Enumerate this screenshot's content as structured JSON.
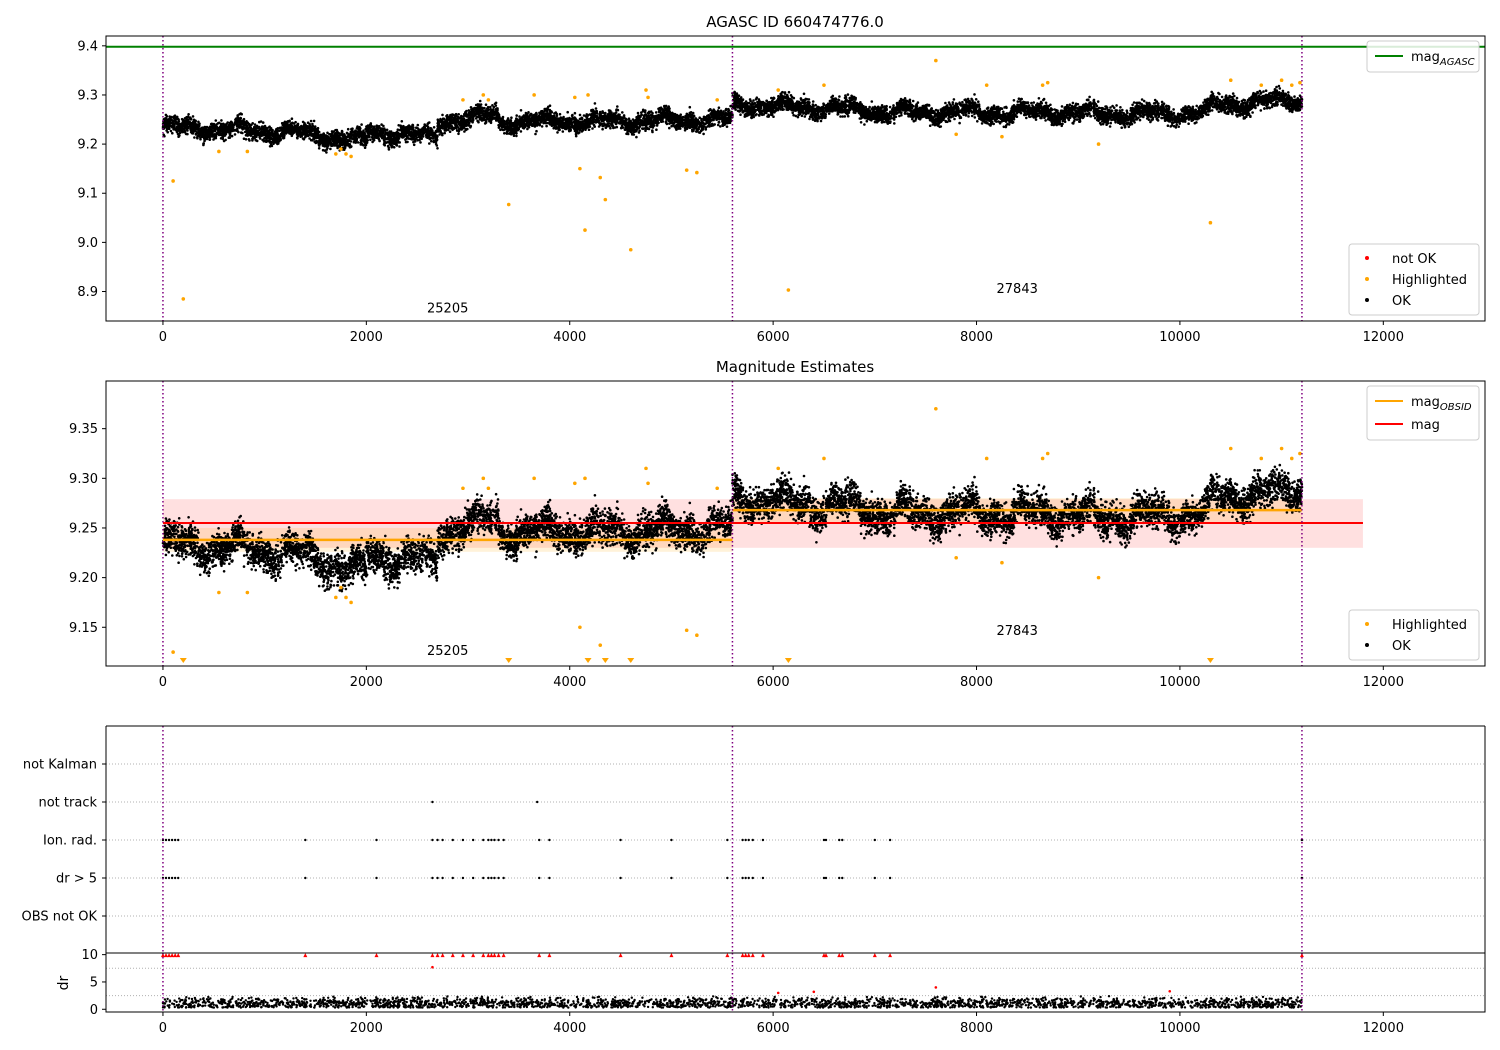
{
  "chart_data": [
    {
      "type": "scatter",
      "title": "AGASC ID 660474776.0",
      "xlim": [
        -560,
        13000
      ],
      "ylim": [
        8.84,
        9.42
      ],
      "xticks": [
        0,
        2000,
        4000,
        6000,
        8000,
        10000,
        12000
      ],
      "yticks": [
        8.9,
        9.0,
        9.1,
        9.2,
        9.3,
        9.4
      ],
      "ytick_labels": [
        "8.9",
        "9.0",
        "9.1",
        "9.2",
        "9.3",
        "9.4"
      ],
      "vlines": [
        0,
        5600,
        11200
      ],
      "vline_color": "#800080",
      "hlines": [
        {
          "y": 9.398,
          "x0": -560,
          "x1": 13000,
          "color": "#008000"
        }
      ],
      "obsid_labels": [
        {
          "text": "25205",
          "x": 2800,
          "y": 8.857
        },
        {
          "text": "27843",
          "x": 8400,
          "y": 8.897
        }
      ],
      "legend_lines": {
        "position": "top-right",
        "entries": [
          {
            "name": "mag",
            "sub": "AGASC",
            "color": "#008000"
          }
        ]
      },
      "legend_points": {
        "position": "bottom-right",
        "entries": [
          {
            "name": "not OK",
            "color": "#ff0000"
          },
          {
            "name": "Highlighted",
            "color": "#ffa500"
          },
          {
            "name": "OK",
            "color": "#000000"
          }
        ]
      },
      "ok_points": {
        "color": "#000000",
        "segments": [
          {
            "x": [
              0,
              1300
            ],
            "y": [
              9.235,
              9.225
            ]
          },
          {
            "x": [
              1300,
              2000
            ],
            "y": [
              9.225,
              9.205
            ]
          },
          {
            "x": [
              2000,
              2700
            ],
            "y": [
              9.225,
              9.215
            ]
          },
          {
            "x": [
              2700,
              3300
            ],
            "y": [
              9.245,
              9.26
            ]
          },
          {
            "x": [
              3300,
              5600
            ],
            "y": [
              9.245,
              9.25
            ]
          },
          {
            "x": [
              5600,
              7000
            ],
            "y": [
              9.28,
              9.27
            ]
          },
          {
            "x": [
              7000,
              9000
            ],
            "y": [
              9.265,
              9.265
            ]
          },
          {
            "x": [
              9000,
              10300
            ],
            "y": [
              9.26,
              9.265
            ]
          },
          {
            "x": [
              10300,
              11200
            ],
            "y": [
              9.28,
              9.29
            ]
          }
        ]
      },
      "highlighted_points": {
        "color": "#ffa500",
        "x": [
          100,
          200,
          550,
          830,
          1700,
          1750,
          1800,
          1850,
          2950,
          3150,
          3200,
          3400,
          3650,
          4050,
          4100,
          4150,
          4180,
          4300,
          4350,
          4600,
          4750,
          4770,
          5150,
          5250,
          5450,
          6050,
          6150,
          6500,
          7600,
          7800,
          8100,
          8250,
          8650,
          8700,
          9200,
          10300,
          10500,
          10800,
          11000,
          11100,
          11180
        ],
        "y": [
          9.125,
          8.885,
          9.185,
          9.185,
          9.18,
          9.19,
          9.18,
          9.175,
          9.29,
          9.3,
          9.29,
          9.077,
          9.3,
          9.295,
          9.15,
          9.025,
          9.3,
          9.132,
          9.087,
          8.985,
          9.31,
          9.295,
          9.147,
          9.142,
          9.29,
          9.31,
          8.903,
          9.32,
          9.37,
          9.22,
          9.32,
          9.215,
          9.32,
          9.325,
          9.2,
          9.04,
          9.33,
          9.32,
          9.33,
          9.32,
          9.325
        ]
      },
      "not_ok_points": {
        "color": "#ff0000",
        "x": [],
        "y": []
      }
    },
    {
      "type": "scatter",
      "title": "Magnitude Estimates",
      "xlim": [
        -560,
        13000
      ],
      "ylim": [
        9.111,
        9.398
      ],
      "xticks": [
        0,
        2000,
        4000,
        6000,
        8000,
        10000,
        12000
      ],
      "yticks": [
        9.15,
        9.2,
        9.25,
        9.3,
        9.35
      ],
      "ytick_labels": [
        "9.15",
        "9.20",
        "9.25",
        "9.30",
        "9.35"
      ],
      "vlines": [
        0,
        5600,
        11200
      ],
      "vline_color": "#800080",
      "mag": {
        "value": 9.255,
        "x0": 0,
        "x1": 11800,
        "band": [
          9.23,
          9.279
        ],
        "color": "#ff0000"
      },
      "mag_obsid": [
        {
          "value": 9.238,
          "x0": 0,
          "x1": 5600,
          "band": [
            9.226,
            9.25
          ]
        },
        {
          "value": 9.268,
          "x0": 5600,
          "x1": 11200,
          "band": [
            9.256,
            9.28
          ]
        }
      ],
      "obsid_labels": [
        {
          "text": "25205",
          "x": 2800,
          "y": 9.122
        },
        {
          "text": "27843",
          "x": 8400,
          "y": 9.142
        }
      ],
      "legend_lines": {
        "position": "top-right",
        "entries": [
          {
            "name": "mag",
            "sub": "OBSID",
            "color": "#ffa500"
          },
          {
            "name": "mag",
            "sub": "",
            "color": "#ff0000"
          }
        ]
      },
      "legend_points": {
        "position": "bottom-right",
        "entries": [
          {
            "name": "Highlighted",
            "color": "#ffa500"
          },
          {
            "name": "OK",
            "color": "#000000"
          }
        ]
      },
      "ok_points": {
        "color": "#000000",
        "segments": [
          {
            "x": [
              0,
              1300
            ],
            "y": [
              9.235,
              9.225
            ]
          },
          {
            "x": [
              1300,
              2000
            ],
            "y": [
              9.225,
              9.205
            ]
          },
          {
            "x": [
              2000,
              2700
            ],
            "y": [
              9.225,
              9.215
            ]
          },
          {
            "x": [
              2700,
              3300
            ],
            "y": [
              9.245,
              9.26
            ]
          },
          {
            "x": [
              3300,
              5600
            ],
            "y": [
              9.245,
              9.25
            ]
          },
          {
            "x": [
              5600,
              7000
            ],
            "y": [
              9.28,
              9.27
            ]
          },
          {
            "x": [
              7000,
              9000
            ],
            "y": [
              9.265,
              9.265
            ]
          },
          {
            "x": [
              9000,
              10300
            ],
            "y": [
              9.26,
              9.265
            ]
          },
          {
            "x": [
              10300,
              11200
            ],
            "y": [
              9.28,
              9.29
            ]
          }
        ]
      },
      "highlighted_points": {
        "color": "#ffa500",
        "x": [
          100,
          550,
          830,
          1700,
          1750,
          1800,
          1850,
          2950,
          3150,
          3200,
          3650,
          4050,
          4100,
          4150,
          4300,
          4750,
          4770,
          5150,
          5250,
          5450,
          6050,
          6500,
          7600,
          7800,
          8100,
          8250,
          8650,
          8700,
          9200,
          10500,
          10800,
          11000,
          11100,
          11180
        ],
        "y": [
          9.125,
          9.185,
          9.185,
          9.18,
          9.19,
          9.18,
          9.175,
          9.29,
          9.3,
          9.29,
          9.3,
          9.295,
          9.15,
          9.3,
          9.132,
          9.31,
          9.295,
          9.147,
          9.142,
          9.29,
          9.31,
          9.32,
          9.37,
          9.22,
          9.32,
          9.215,
          9.32,
          9.325,
          9.2,
          9.33,
          9.32,
          9.33,
          9.32,
          9.325
        ]
      },
      "off_scale_markers": {
        "color": "#ffa500",
        "x": [
          200,
          3400,
          4180,
          4350,
          4600,
          6150,
          10300
        ]
      }
    },
    {
      "type": "scatter",
      "xlim": [
        -560,
        13000
      ],
      "categories": [
        "not Kalman",
        "not track",
        "Ion. rad.",
        "dr > 5",
        "OBS not OK"
      ],
      "vlines": [
        0,
        5600,
        11200
      ],
      "vline_color": "#800080",
      "flag_points": {
        "not track": [
          2650,
          3680
        ],
        "Ion. rad.": [
          0,
          30,
          60,
          90,
          120,
          150,
          1400,
          2100,
          2650,
          2700,
          2750,
          2850,
          2950,
          3050,
          3150,
          3200,
          3230,
          3260,
          3300,
          3350,
          3700,
          3800,
          4500,
          5000,
          5550,
          5700,
          5730,
          5760,
          5800,
          5900,
          6500,
          6520,
          6650,
          6680,
          7000,
          7150,
          11200
        ],
        "dr > 5": [
          0,
          30,
          60,
          90,
          120,
          150,
          1400,
          2100,
          2650,
          2700,
          2750,
          2850,
          2950,
          3050,
          3150,
          3200,
          3230,
          3260,
          3300,
          3350,
          3700,
          3800,
          4500,
          5000,
          5550,
          5700,
          5730,
          5760,
          5800,
          5900,
          6500,
          6520,
          6650,
          6680,
          7000,
          7150,
          11200
        ],
        "not Kalman": [],
        "OBS not OK": []
      }
    },
    {
      "type": "scatter",
      "ylabel": "dr",
      "xlim": [
        -560,
        13000
      ],
      "ylim": [
        -0.5,
        10.3
      ],
      "yticks": [
        0,
        5,
        10
      ],
      "xticks": [
        0,
        2000,
        4000,
        6000,
        8000,
        10000,
        12000
      ],
      "vlines": [
        0,
        5600,
        11200
      ],
      "vline_color": "#800080",
      "ok_points": {
        "color": "#000000",
        "y_range": [
          0.3,
          2.4
        ]
      },
      "capped_points": {
        "color": "#ff0000",
        "y": 9.9,
        "x": [
          0,
          30,
          60,
          90,
          120,
          150,
          1400,
          2100,
          2650,
          2700,
          2750,
          2850,
          2950,
          3050,
          3150,
          3200,
          3230,
          3260,
          3300,
          3350,
          3700,
          3800,
          4500,
          5000,
          5550,
          5700,
          5730,
          5760,
          5800,
          5900,
          6500,
          6520,
          6650,
          6680,
          7000,
          7150,
          11200
        ]
      },
      "red_points": {
        "color": "#ff0000",
        "x": [
          2650,
          6050,
          6400,
          7600,
          9900
        ],
        "y": [
          7.7,
          3.0,
          3.2,
          4.0,
          3.3
        ]
      }
    }
  ]
}
